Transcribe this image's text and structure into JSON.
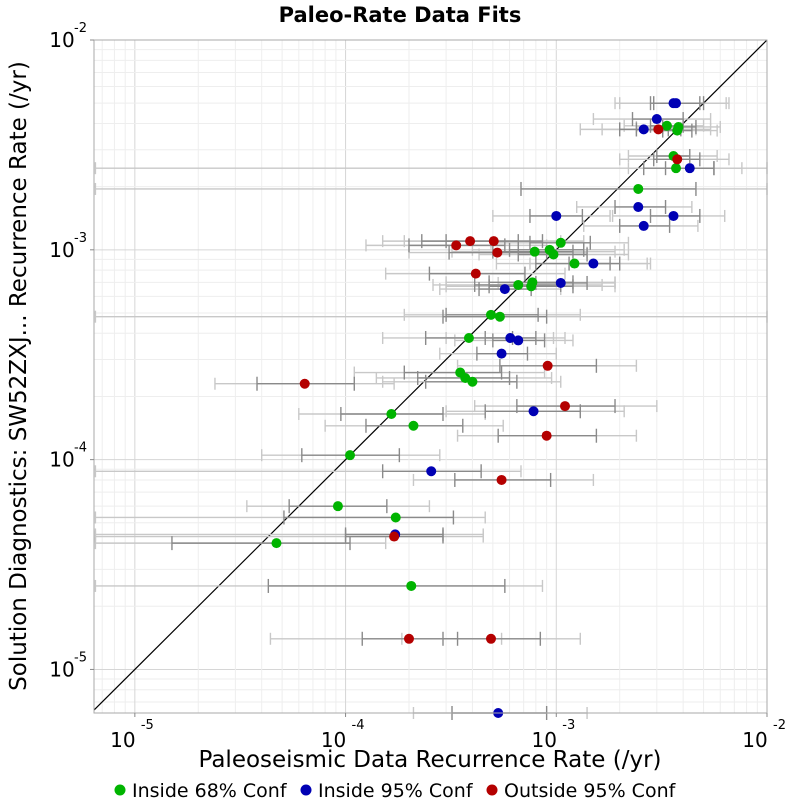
{
  "chart_data": {
    "type": "scatter",
    "title": "Paleo-Rate Data Fits",
    "xlabel": "Paleoseismic Data Recurrence Rate (/yr)",
    "ylabel": "Solution Diagnostics: SW52ZXJ... Recurrence Rate (/yr)",
    "xscale": "log",
    "yscale": "log",
    "xlim": [
      6.4e-06,
      0.01
    ],
    "ylim": [
      6.2e-06,
      0.01
    ],
    "x_ticks": [
      {
        "base": "10",
        "exp": "-5",
        "value": 1e-05
      },
      {
        "base": "10",
        "exp": "-4",
        "value": 0.0001
      },
      {
        "base": "10",
        "exp": "-3",
        "value": 0.001
      },
      {
        "base": "10",
        "exp": "-2",
        "value": 0.01
      }
    ],
    "y_ticks": [
      {
        "base": "10",
        "exp": "-5",
        "value": 1e-05
      },
      {
        "base": "10",
        "exp": "-4",
        "value": 0.0001
      },
      {
        "base": "10",
        "exp": "-3",
        "value": 0.001
      },
      {
        "base": "10",
        "exp": "-2",
        "value": 0.01
      }
    ],
    "grid": true,
    "reference_line": "y = x",
    "legend_position": "bottom",
    "series": [
      {
        "name": "Inside 68% Conf",
        "color": "#00b400",
        "points": [
          {
            "x": 0.00335,
            "y": 0.0039,
            "xerr68": [
              0.0028,
              0.004
            ],
            "xerr95": [
              0.0021,
              0.005
            ]
          },
          {
            "x": 0.00375,
            "y": 0.0037,
            "xerr68": [
              0.0032,
              0.0044
            ],
            "xerr95": [
              0.0024,
              0.0058
            ]
          },
          {
            "x": 0.0038,
            "y": 0.00385,
            "xerr68": [
              0.0032,
              0.0046
            ],
            "xerr95": [
              0.0024,
              0.006
            ]
          },
          {
            "x": 0.0036,
            "y": 0.0028,
            "xerr68": [
              0.003,
              0.0043
            ],
            "xerr95": [
              0.0022,
              0.0058
            ]
          },
          {
            "x": 0.0037,
            "y": 0.00245,
            "xerr68": [
              0.0026,
              0.0056
            ],
            "xerr95": [
              6.5e-06,
              0.01
            ]
          },
          {
            "x": 0.00245,
            "y": 0.00195,
            "xerr68": [
              0.00068,
              0.0046
            ],
            "xerr95": [
              6.5e-06,
              0.01
            ]
          },
          {
            "x": 0.00105,
            "y": 0.00108,
            "xerr68": [
              0.00075,
              0.00145
            ],
            "xerr95": [
              0.00049,
              0.0022
            ]
          },
          {
            "x": 0.00093,
            "y": 0.001,
            "xerr68": [
              0.0006,
              0.00135
            ],
            "xerr95": [
              0.0004,
              0.0021
            ]
          },
          {
            "x": 0.00079,
            "y": 0.00098,
            "xerr68": [
              0.0005,
              0.0012
            ],
            "xerr95": [
              0.00032,
              0.0019
            ]
          },
          {
            "x": 0.00097,
            "y": 0.00095,
            "xerr68": [
              0.00066,
              0.0014
            ],
            "xerr95": [
              0.00043,
              0.0022
            ]
          },
          {
            "x": 0.00122,
            "y": 0.00086,
            "xerr68": [
              0.0008,
              0.0018
            ],
            "xerr95": [
              0.00052,
              0.0028
            ]
          },
          {
            "x": 0.00077,
            "y": 0.0007,
            "xerr68": [
              0.00048,
              0.0012
            ],
            "xerr95": [
              0.0003,
              0.0019
            ]
          },
          {
            "x": 0.00076,
            "y": 0.00067,
            "xerr68": [
              0.00048,
              0.0012
            ],
            "xerr95": [
              0.0003,
              0.0019
            ]
          },
          {
            "x": 0.00066,
            "y": 0.00068,
            "xerr68": [
              0.00041,
              0.00105
            ],
            "xerr95": [
              0.00026,
              0.00165
            ]
          },
          {
            "x": 0.00054,
            "y": 0.00048,
            "xerr68": [
              0.00029,
              0.0009
            ],
            "xerr95": [
              6.5e-06,
              0.01
            ]
          },
          {
            "x": 0.00049,
            "y": 0.00049,
            "xerr68": [
              0.0003,
              0.00082
            ],
            "xerr95": [
              0.00019,
              0.0013
            ]
          },
          {
            "x": 0.000385,
            "y": 0.00038,
            "xerr68": [
              0.00024,
              0.00062
            ],
            "xerr95": [
              0.00015,
              0.00097
            ]
          },
          {
            "x": 0.00035,
            "y": 0.00026,
            "xerr68": [
              0.00019,
              0.00055
            ],
            "xerr95": [
              0.00011,
              0.00088
            ]
          },
          {
            "x": 0.00037,
            "y": 0.000245,
            "xerr68": [
              0.00022,
              0.0006
            ],
            "xerr95": [
              0.00014,
              0.00095
            ]
          },
          {
            "x": 0.0004,
            "y": 0.000235,
            "xerr68": [
              0.00024,
              0.00065
            ],
            "xerr95": [
              0.00015,
              0.00105
            ]
          },
          {
            "x": 0.000165,
            "y": 0.000165,
            "xerr68": [
              9.5e-05,
              0.00029
            ],
            "xerr95": [
              6e-05,
              0.00046
            ]
          },
          {
            "x": 0.00021,
            "y": 0.000145,
            "xerr68": [
              0.000125,
              0.00036
            ],
            "xerr95": [
              8e-05,
              0.00056
            ]
          },
          {
            "x": 0.000105,
            "y": 0.000105,
            "xerr68": [
              6.2e-05,
              0.00018
            ],
            "xerr95": [
              4e-05,
              0.00028
            ]
          },
          {
            "x": 9.2e-05,
            "y": 6e-05,
            "xerr68": [
              5.4e-05,
              0.000157
            ],
            "xerr95": [
              3.4e-05,
              0.00025
            ]
          },
          {
            "x": 0.000173,
            "y": 5.3e-05,
            "xerr68": [
              5.1e-05,
              0.000325
            ],
            "xerr95": [
              6.5e-06,
              0.00046
            ]
          },
          {
            "x": 4.7e-05,
            "y": 4e-05,
            "xerr68": [
              1.5e-05,
              0.000105
            ],
            "xerr95": [
              6.5e-06,
              0.000155
            ]
          },
          {
            "x": 0.000205,
            "y": 2.5e-05,
            "xerr68": [
              4.3e-05,
              0.00057
            ],
            "xerr95": [
              6.5e-06,
              0.00086
            ]
          }
        ]
      },
      {
        "name": "Inside 95% Conf",
        "color": "#0000b4",
        "points": [
          {
            "x": 0.0036,
            "y": 0.005,
            "xerr68": [
              0.0028,
              0.0048
            ],
            "xerr95": [
              0.0019,
              0.0064
            ]
          },
          {
            "x": 0.0037,
            "y": 0.005,
            "xerr68": [
              0.0029,
              0.005
            ],
            "xerr95": [
              0.002,
              0.0066
            ]
          },
          {
            "x": 0.003,
            "y": 0.0042,
            "xerr68": [
              0.0023,
              0.004
            ],
            "xerr95": [
              0.0015,
              0.0054
            ]
          },
          {
            "x": 0.0026,
            "y": 0.00375,
            "xerr68": [
              0.002,
              0.0034
            ],
            "xerr95": [
              0.0013,
              0.0046
            ]
          },
          {
            "x": 0.0043,
            "y": 0.00245,
            "xerr68": [
              0.0033,
              0.0056
            ],
            "xerr95": [
              0.0022,
              0.0076
            ]
          },
          {
            "x": 0.00245,
            "y": 0.0016,
            "xerr68": [
              0.0019,
              0.0033
            ],
            "xerr95": [
              0.00125,
              0.0044
            ]
          },
          {
            "x": 0.0036,
            "y": 0.00145,
            "xerr68": [
              0.0028,
              0.0048
            ],
            "xerr95": [
              0.00185,
              0.0063
            ]
          },
          {
            "x": 0.001,
            "y": 0.00145,
            "xerr68": [
              0.00075,
              0.00133
            ],
            "xerr95": [
              0.0005,
              0.0018
            ]
          },
          {
            "x": 0.0026,
            "y": 0.0013,
            "xerr68": [
              0.002,
              0.00345
            ],
            "xerr95": [
              0.00135,
              0.0047
            ]
          },
          {
            "x": 0.0015,
            "y": 0.00086,
            "xerr68": [
              0.00115,
              0.002
            ],
            "xerr95": [
              0.00075,
              0.0027
            ]
          },
          {
            "x": 0.00105,
            "y": 0.000695,
            "xerr68": [
              0.0008,
              0.0014
            ],
            "xerr95": [
              0.00053,
              0.0019
            ]
          },
          {
            "x": 0.00057,
            "y": 0.00065,
            "xerr68": [
              0.00043,
              0.00076
            ],
            "xerr95": [
              0.00028,
              0.00105
            ]
          },
          {
            "x": 0.000605,
            "y": 0.00038,
            "xerr68": [
              0.00046,
              0.0008
            ],
            "xerr95": [
              0.0003,
              0.0011
            ]
          },
          {
            "x": 0.00066,
            "y": 0.00037,
            "xerr68": [
              0.0005,
              0.00088
            ],
            "xerr95": [
              0.00033,
              0.0012
            ]
          },
          {
            "x": 0.00055,
            "y": 0.00032,
            "xerr68": [
              0.00042,
              0.00073
            ],
            "xerr95": [
              0.00028,
              0.001
            ]
          },
          {
            "x": 0.00078,
            "y": 0.00017,
            "xerr68": [
              0.00046,
              0.0013
            ],
            "xerr95": [
              0.0003,
              0.0021
            ]
          },
          {
            "x": 0.000255,
            "y": 8.8e-05,
            "xerr68": [
              0.00015,
              0.00044
            ],
            "xerr95": [
              6.5e-06,
              0.00068
            ]
          },
          {
            "x": 0.000172,
            "y": 4.4e-05,
            "xerr68": [
              0.0001,
              0.00029
            ],
            "xerr95": [
              6.5e-06,
              0.00045
            ]
          },
          {
            "x": 0.00053,
            "y": 6.2e-06,
            "xerr68": [
              0.00032,
              0.0009
            ],
            "xerr95": [
              0.00021,
              0.0014
            ]
          }
        ]
      },
      {
        "name": "Outside 95% Conf",
        "color": "#b40000",
        "points": [
          {
            "x": 0.00305,
            "y": 0.00375,
            "xerr68": [
              0.0024,
              0.0039
            ],
            "xerr95": [
              0.00165,
              0.0054
            ]
          },
          {
            "x": 0.00375,
            "y": 0.0027,
            "xerr68": [
              0.0029,
              0.0048
            ],
            "xerr95": [
              0.002,
              0.0066
            ]
          },
          {
            "x": 0.00039,
            "y": 0.0011,
            "xerr68": [
              0.00023,
              0.00066
            ],
            "xerr95": [
              0.00015,
              0.00105
            ]
          },
          {
            "x": 0.000505,
            "y": 0.0011,
            "xerr68": [
              0.0003,
              0.00086
            ],
            "xerr95": [
              0.00019,
              0.00135
            ]
          },
          {
            "x": 0.000335,
            "y": 0.00105,
            "xerr68": [
              0.0002,
              0.00057
            ],
            "xerr95": [
              0.000125,
              0.0009
            ]
          },
          {
            "x": 0.000525,
            "y": 0.00097,
            "xerr68": [
              0.00031,
              0.0009
            ],
            "xerr95": [
              0.0002,
              0.0014
            ]
          },
          {
            "x": 0.000415,
            "y": 0.00077,
            "xerr68": [
              0.00025,
              0.00071
            ],
            "xerr95": [
              0.000155,
              0.0011
            ]
          },
          {
            "x": 0.00091,
            "y": 0.00028,
            "xerr68": [
              0.00054,
              0.00155
            ],
            "xerr95": [
              0.00034,
              0.0024
            ]
          },
          {
            "x": 6.4e-05,
            "y": 0.00023,
            "xerr68": [
              3.8e-05,
              0.00011
            ],
            "xerr95": [
              2.4e-05,
              0.00017
            ]
          },
          {
            "x": 0.0011,
            "y": 0.00018,
            "xerr68": [
              0.00065,
              0.0019
            ],
            "xerr95": [
              0.00041,
              0.003
            ]
          },
          {
            "x": 0.0009,
            "y": 0.00013,
            "xerr68": [
              0.00053,
              0.00155
            ],
            "xerr95": [
              0.00034,
              0.0024
            ]
          },
          {
            "x": 0.00055,
            "y": 8e-05,
            "xerr68": [
              0.00033,
              0.00094
            ],
            "xerr95": [
              0.00021,
              0.0015
            ]
          },
          {
            "x": 0.00017,
            "y": 4.3e-05,
            "xerr68": [
              0.0001,
              0.00029
            ],
            "xerr95": [
              6.5e-06,
              0.00045
            ]
          },
          {
            "x": 0.0002,
            "y": 1.4e-05,
            "xerr68": [
              0.00012,
              0.00034
            ],
            "xerr95": [
              4.4e-05,
              0.00055
            ]
          },
          {
            "x": 0.00049,
            "y": 1.4e-05,
            "xerr68": [
              0.00029,
              0.00084
            ],
            "xerr95": [
              0.000185,
              0.0013
            ]
          }
        ]
      }
    ]
  }
}
